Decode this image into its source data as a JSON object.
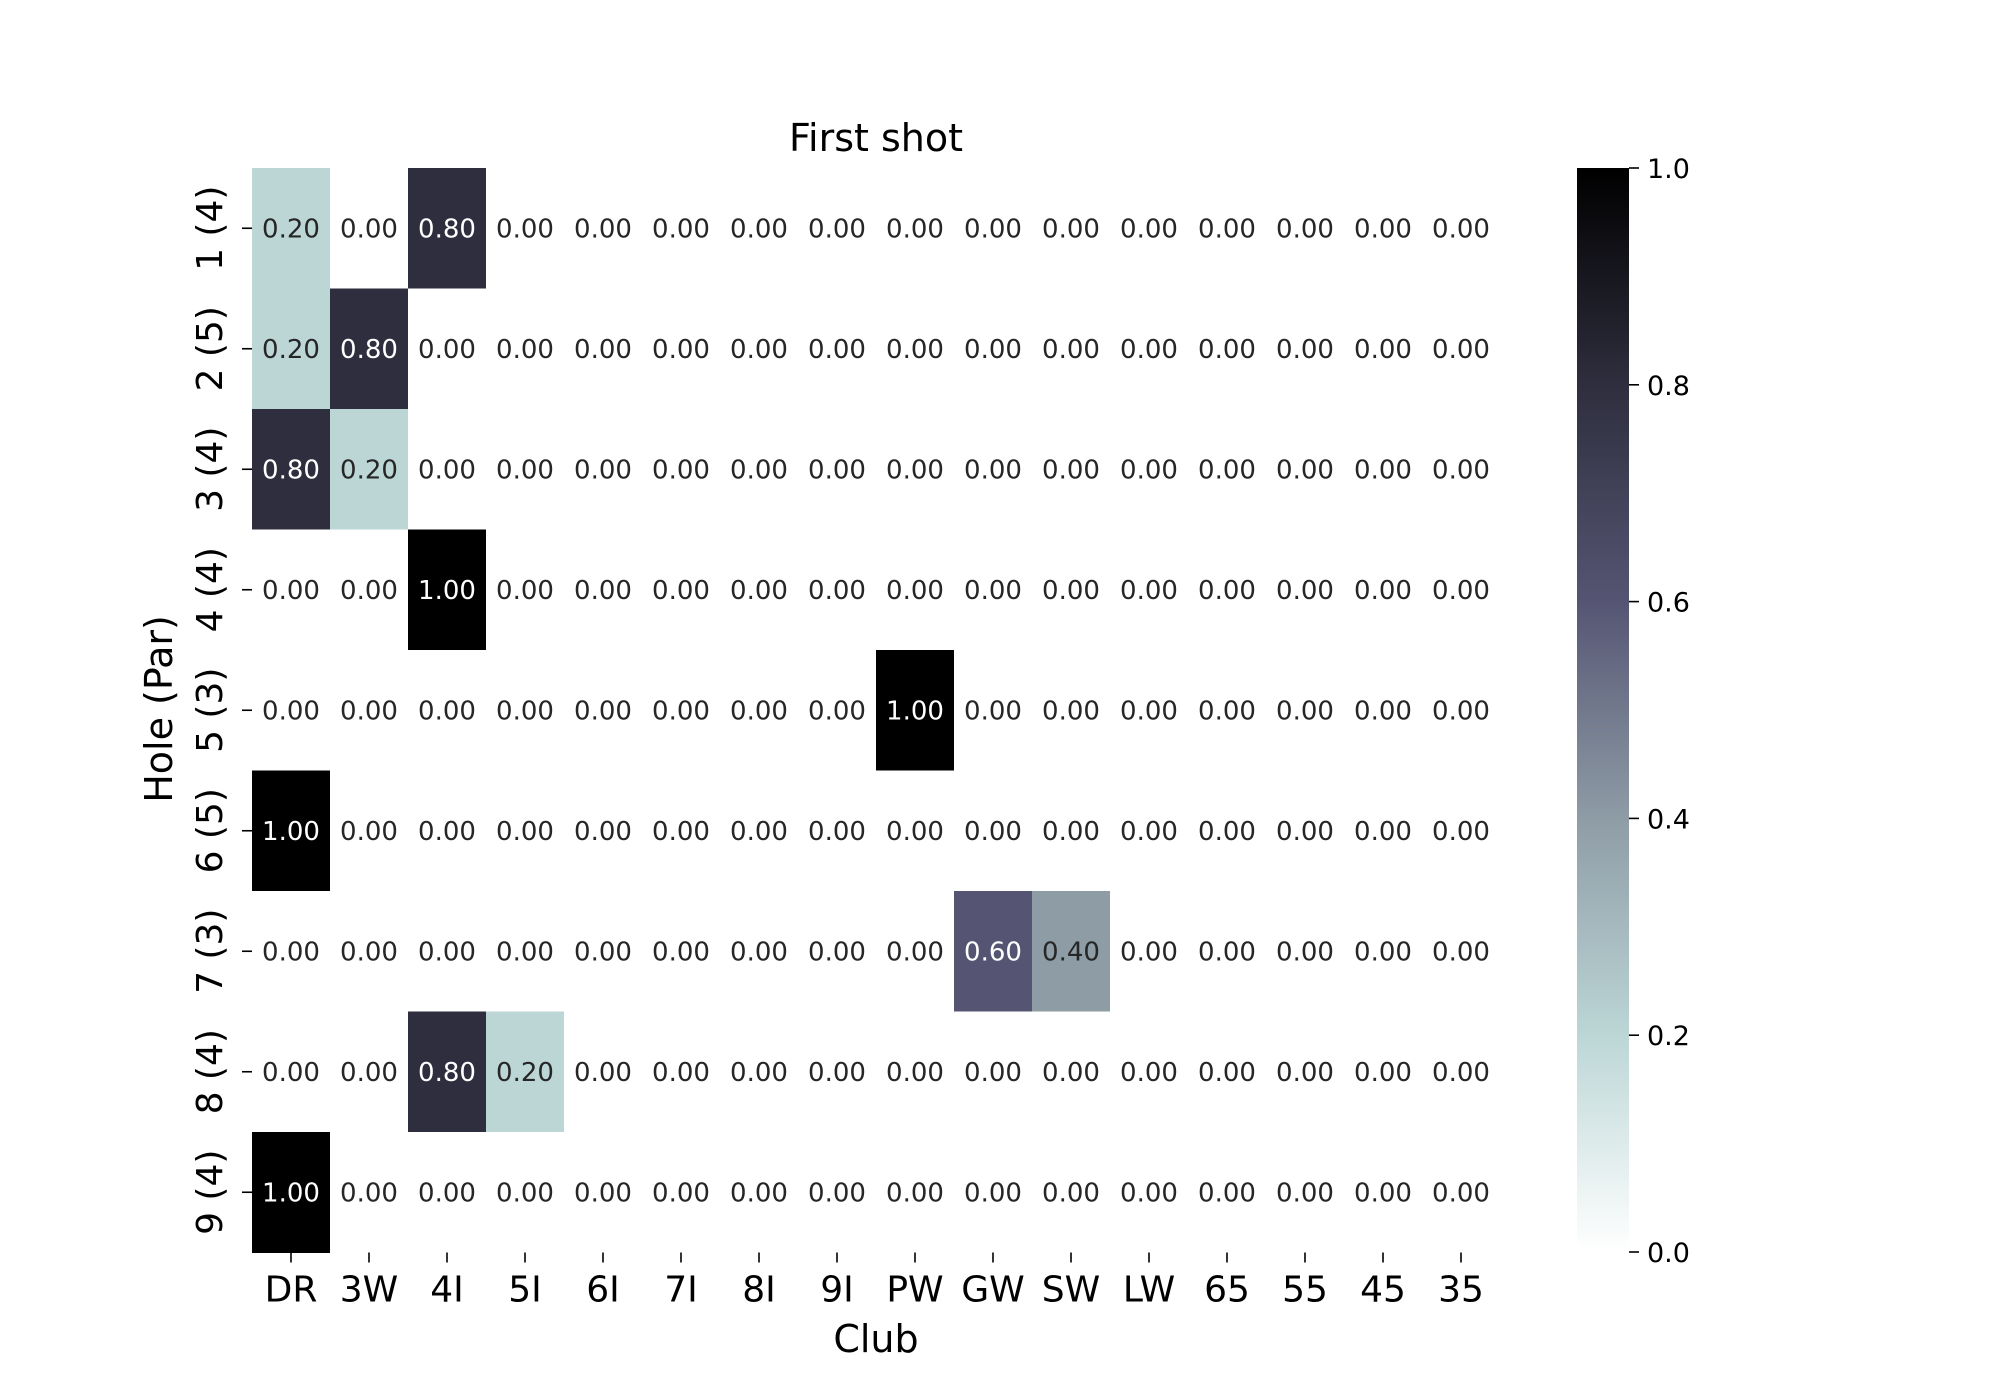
{
  "chart_data": {
    "type": "heatmap",
    "title": "First shot",
    "xlabel": "Club",
    "ylabel": "Hole (Par)",
    "x_categories": [
      "DR",
      "3W",
      "4I",
      "5I",
      "6I",
      "7I",
      "8I",
      "9I",
      "PW",
      "GW",
      "SW",
      "LW",
      "65",
      "55",
      "45",
      "35"
    ],
    "y_categories": [
      "1 (4)",
      "2 (5)",
      "3 (4)",
      "4 (4)",
      "5 (3)",
      "6 (5)",
      "7 (3)",
      "8 (4)",
      "9 (4)"
    ],
    "values": [
      [
        0.2,
        0.0,
        0.8,
        0.0,
        0.0,
        0.0,
        0.0,
        0.0,
        0.0,
        0.0,
        0.0,
        0.0,
        0.0,
        0.0,
        0.0,
        0.0
      ],
      [
        0.2,
        0.8,
        0.0,
        0.0,
        0.0,
        0.0,
        0.0,
        0.0,
        0.0,
        0.0,
        0.0,
        0.0,
        0.0,
        0.0,
        0.0,
        0.0
      ],
      [
        0.8,
        0.2,
        0.0,
        0.0,
        0.0,
        0.0,
        0.0,
        0.0,
        0.0,
        0.0,
        0.0,
        0.0,
        0.0,
        0.0,
        0.0,
        0.0
      ],
      [
        0.0,
        0.0,
        1.0,
        0.0,
        0.0,
        0.0,
        0.0,
        0.0,
        0.0,
        0.0,
        0.0,
        0.0,
        0.0,
        0.0,
        0.0,
        0.0
      ],
      [
        0.0,
        0.0,
        0.0,
        0.0,
        0.0,
        0.0,
        0.0,
        0.0,
        1.0,
        0.0,
        0.0,
        0.0,
        0.0,
        0.0,
        0.0,
        0.0
      ],
      [
        1.0,
        0.0,
        0.0,
        0.0,
        0.0,
        0.0,
        0.0,
        0.0,
        0.0,
        0.0,
        0.0,
        0.0,
        0.0,
        0.0,
        0.0,
        0.0
      ],
      [
        0.0,
        0.0,
        0.0,
        0.0,
        0.0,
        0.0,
        0.0,
        0.0,
        0.0,
        0.6,
        0.4,
        0.0,
        0.0,
        0.0,
        0.0,
        0.0
      ],
      [
        0.0,
        0.0,
        0.8,
        0.2,
        0.0,
        0.0,
        0.0,
        0.0,
        0.0,
        0.0,
        0.0,
        0.0,
        0.0,
        0.0,
        0.0,
        0.0
      ],
      [
        1.0,
        0.0,
        0.0,
        0.0,
        0.0,
        0.0,
        0.0,
        0.0,
        0.0,
        0.0,
        0.0,
        0.0,
        0.0,
        0.0,
        0.0,
        0.0
      ]
    ],
    "value_range": [
      0.0,
      1.0
    ],
    "colorbar_ticks": [
      "0.0",
      "0.2",
      "0.4",
      "0.6",
      "0.8",
      "1.0"
    ],
    "colormap": "bone_r",
    "colormap_stops": [
      "#ffffff",
      "#bcd6d6",
      "#8e9ca6",
      "#555573",
      "#2e2e3e",
      "#000000"
    ],
    "annotation_format": "2 decimals",
    "legend": "colorbar-right",
    "grid": false
  }
}
